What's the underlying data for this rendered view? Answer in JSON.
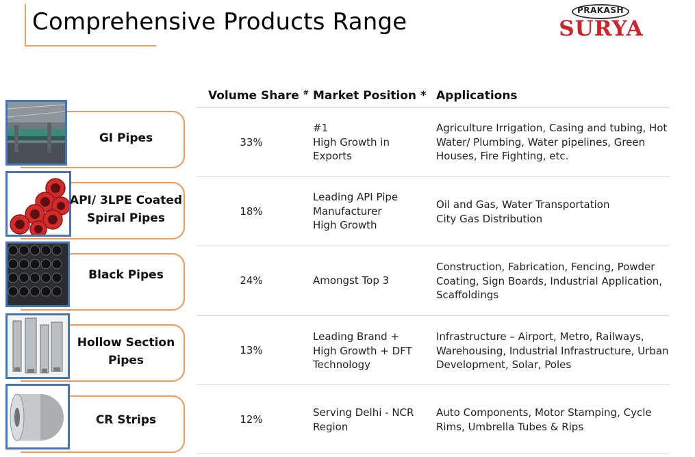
{
  "title": "Comprehensive Products Range",
  "logo": {
    "top": "PRAKASH",
    "name": "SURYA",
    "color": "#c8262b"
  },
  "headers": {
    "volume": "Volume Share",
    "volume_mark": "#",
    "market": "Market Position *",
    "applications": "Applications"
  },
  "rows": [
    {
      "product": "GI Pipes",
      "volume": "33%",
      "market": "#1\nHigh Growth in\nExports",
      "applications": "Agriculture Irrigation, Casing and tubing, Hot\nWater/ Plumbing, Water pipelines, Green\nHouses, Fire Fighting, etc."
    },
    {
      "product": "API/ 3LPE Coated\nSpiral Pipes",
      "volume": "18%",
      "market": "Leading API Pipe\nManufacturer\nHigh Growth",
      "applications": "Oil and Gas, Water Transportation\nCity Gas Distribution"
    },
    {
      "product": "Black Pipes",
      "volume": "24%",
      "market": "Amongst Top 3",
      "applications": "Construction, Fabrication, Fencing, Powder\nCoating, Sign Boards, Industrial Application,\nScaffoldings"
    },
    {
      "product": "Hollow Section\nPipes",
      "volume": "13%",
      "market": "Leading Brand +\nHigh Growth + DFT\nTechnology",
      "applications": "Infrastructure – Airport, Metro, Railways,\nWarehousing, Industrial Infrastructure, Urban\nDevelopment, Solar, Poles"
    },
    {
      "product": "CR Strips",
      "volume": "12%",
      "market": "Serving Delhi - NCR\nRegion",
      "applications": "Auto Components, Motor Stamping, Cycle\nRims, Umbrella Tubes & Rips"
    }
  ]
}
